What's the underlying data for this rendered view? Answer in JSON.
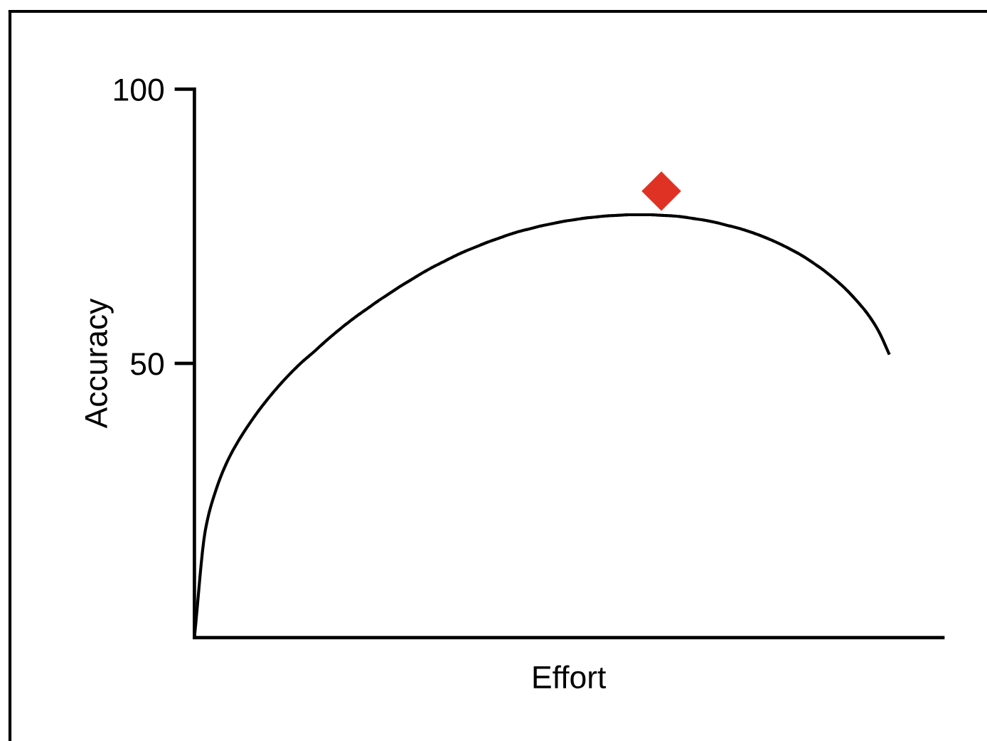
{
  "chart_data": {
    "type": "line",
    "xlabel": "Effort",
    "ylabel": "Accuracy",
    "categories": [
      null,
      null,
      null,
      null,
      null,
      null,
      null,
      null,
      null,
      null,
      null,
      null,
      null,
      null,
      null,
      null,
      null,
      null,
      null,
      null,
      null,
      null,
      null,
      null,
      null,
      null,
      null,
      null,
      null,
      null,
      null,
      null,
      null,
      null,
      null,
      null,
      null,
      null,
      null,
      null,
      null,
      null,
      null,
      null,
      null,
      null,
      null,
      null,
      null,
      null,
      null,
      null,
      null,
      null,
      null,
      null,
      null,
      null,
      null,
      null,
      null,
      null,
      null,
      null,
      null
    ],
    "series": [
      {
        "color": "#000000",
        "marker": "none",
        "values": [
          0,
          19.5,
          27,
          32,
          35.7,
          38.8,
          41.6,
          44.1,
          46.4,
          48.5,
          50.4,
          52.1,
          53.9,
          55.6,
          57.2,
          58.7,
          60.1,
          61.5,
          62.8,
          64.1,
          65.3,
          66.5,
          67.6,
          68.6,
          69.6,
          70.5,
          71.3,
          72.1,
          72.8,
          73.5,
          74.1,
          74.6,
          75.1,
          75.5,
          75.9,
          76.2,
          76.5,
          76.7,
          76.9,
          77,
          77.1,
          77.1,
          77.1,
          77,
          76.9,
          76.7,
          76.4,
          76.1,
          75.7,
          75.2,
          74.7,
          74.1,
          73.4,
          72.6,
          71.7,
          70.7,
          69.6,
          68.3,
          66.9,
          65.3,
          63.5,
          61.4,
          59,
          55.9,
          51.6
        ]
      },
      {
        "type": "scatter",
        "color": "#e03224",
        "marker": "diamond",
        "values": [
          null,
          null,
          null,
          null,
          null,
          null,
          null,
          null,
          null,
          null,
          null,
          null,
          null,
          null,
          null,
          null,
          null,
          null,
          null,
          null,
          null,
          null,
          null,
          null,
          null,
          null,
          null,
          null,
          null,
          null,
          null,
          null,
          null,
          null,
          null,
          null,
          null,
          null,
          null,
          null,
          null,
          null,
          null,
          81.4,
          null,
          null,
          null,
          null,
          null,
          null,
          null,
          null,
          null,
          null,
          null,
          null,
          null,
          null,
          null,
          null,
          null,
          null,
          null,
          null,
          null
        ]
      }
    ],
    "ylim": [
      0,
      100
    ],
    "yticks": [
      50,
      100
    ]
  }
}
